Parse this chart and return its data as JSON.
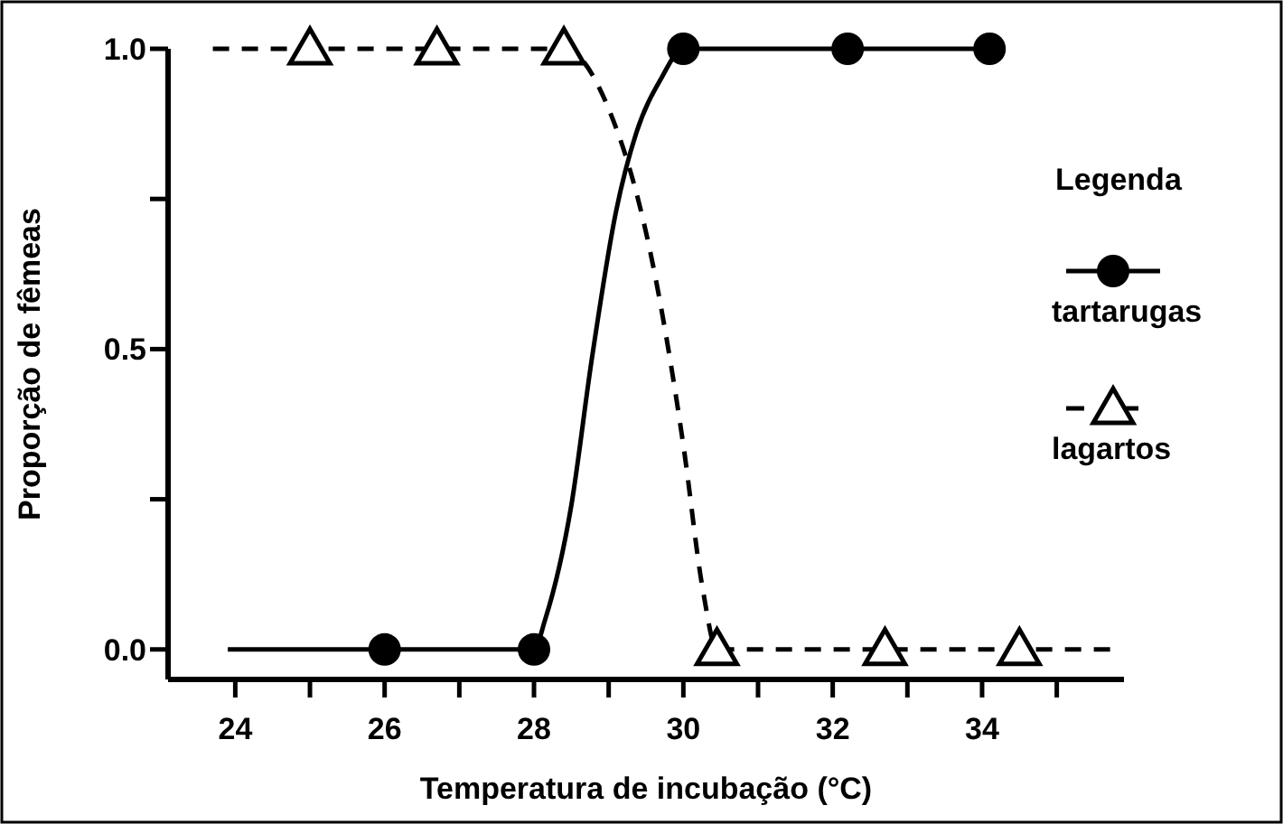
{
  "chart_data": {
    "type": "line",
    "xlabel": "Temperatura de incubação (°C)",
    "ylabel": "Proporção de fêmeas",
    "legend_title": "Legenda",
    "legend": "right",
    "grid": false,
    "xlim": [
      23.1,
      35.9
    ],
    "xticks": [
      24,
      {
        "value": 25,
        "label": null
      },
      26,
      {
        "value": 27,
        "label": null
      },
      28,
      {
        "value": 29,
        "label": null
      },
      30,
      {
        "value": 31,
        "label": null
      },
      32,
      {
        "value": 33,
        "label": null
      },
      34,
      {
        "value": 35,
        "label": null
      }
    ],
    "ylim": [
      -0.05,
      1.0
    ],
    "yticks": [
      "0.0",
      {
        "value": 0.25,
        "label": null
      },
      {
        "value": 0.5,
        "label": "0.5"
      },
      {
        "value": 0.75,
        "label": null
      },
      {
        "value": 1.0,
        "label": "1.0"
      }
    ],
    "series": [
      {
        "color": "#000000",
        "line_style": "solid",
        "marker": "none",
        "x": [
          23.9,
          26,
          28,
          28.15,
          28.5,
          28.77,
          29.1,
          29.37,
          29.7,
          30,
          32.2,
          34.1
        ],
        "values": [
          0,
          0,
          0,
          0.05,
          0.24,
          0.48,
          0.73,
          0.86,
          0.95,
          1,
          1,
          1
        ]
      },
      {
        "type": "scatter",
        "name": "tartarugas",
        "color": "#000000",
        "line_style": "solid",
        "marker": "circle",
        "x": [
          26,
          28,
          30,
          32.2,
          34.1
        ],
        "values": [
          0,
          0,
          1,
          1,
          1
        ]
      },
      {
        "color": "#000000",
        "line_style": "dashed",
        "marker": "none",
        "x": [
          23.7,
          25,
          26.7,
          28.4,
          29.0,
          29.56,
          30.0,
          30.26,
          30.45,
          32.7,
          34.5,
          35.75
        ],
        "values": [
          1,
          1,
          1,
          1,
          0.9,
          0.66,
          0.34,
          0.1,
          0,
          0,
          0,
          0
        ]
      },
      {
        "type": "scatter",
        "name": "lagartos",
        "color": "#000000",
        "line_style": "dashed",
        "marker": "triangle",
        "x": [
          25,
          26.7,
          28.4,
          30.45,
          32.7,
          34.5
        ],
        "values": [
          1,
          1,
          1,
          0,
          0,
          0
        ]
      }
    ]
  }
}
